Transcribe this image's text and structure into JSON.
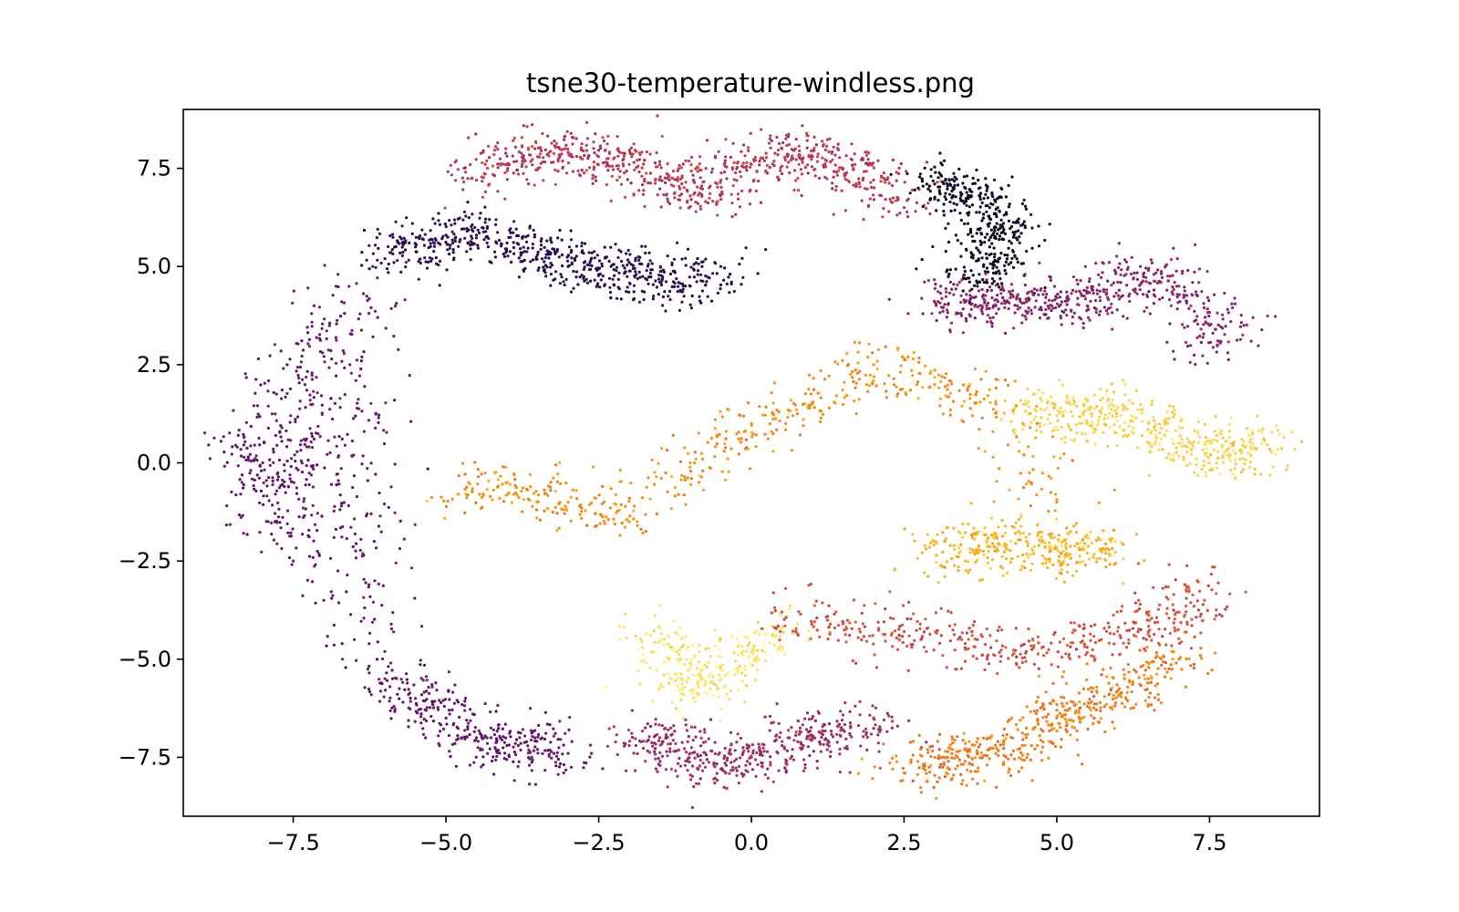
{
  "chart_data": {
    "type": "scatter",
    "title": "tsne30-temperature-windless.png",
    "xlabel": "",
    "ylabel": "",
    "xlim": [
      -9.3,
      9.3
    ],
    "ylim": [
      -9.0,
      9.0
    ],
    "x_ticks": [
      -7.5,
      -5.0,
      -2.5,
      0.0,
      2.5,
      5.0,
      7.5
    ],
    "x_tick_labels": [
      "−7.5",
      "−5.0",
      "−2.5",
      "0.0",
      "2.5",
      "5.0",
      "7.5"
    ],
    "y_ticks": [
      7.5,
      5.0,
      2.5,
      0.0,
      -2.5,
      -5.0,
      -7.5
    ],
    "y_tick_labels": [
      "7.5",
      "5.0",
      "2.5",
      "0.0",
      "−2.5",
      "−5.0",
      "−7.5"
    ],
    "grid": false,
    "legend": "none",
    "colormap": "inferno",
    "color_variable_range": [
      0.05,
      0.95
    ],
    "series": [
      {
        "values_by_region": [
          {
            "region": "outer-left-arc",
            "color_value": 0.35,
            "x": [
              -8.4,
              -8.0,
              -7.8,
              -7.6,
              -7.5,
              -7.2,
              -7.0,
              -6.8,
              -6.5,
              -6.2,
              -6.0,
              -5.5,
              -5.0,
              -4.5,
              -4.0,
              -3.5,
              -3.0
            ],
            "y": [
              0.7,
              0.0,
              -1.5,
              2.5,
              -2.5,
              3.8,
              -3.5,
              4.5,
              -4.5,
              5.0,
              -5.5,
              -6.0,
              -6.5,
              -7.0,
              -7.2,
              -7.3,
              -7.4
            ]
          },
          {
            "region": "upper-left-purple-band",
            "color_value": 0.18,
            "x": [
              -6.0,
              -5.5,
              -5.0,
              -4.5,
              -4.0,
              -3.5,
              -3.0,
              -2.5,
              -2.0,
              -1.5,
              -1.0,
              -0.5
            ],
            "y": [
              5.2,
              5.5,
              5.8,
              5.8,
              5.6,
              5.3,
              5.0,
              4.8,
              5.1,
              4.6,
              4.5,
              5.0
            ]
          },
          {
            "region": "top-arc",
            "color_value": 0.55,
            "x": [
              -4.5,
              -4.0,
              -3.5,
              -3.0,
              -2.5,
              -2.0,
              -1.5,
              -1.0,
              -0.5,
              0.0,
              0.5,
              1.0,
              1.5,
              2.0,
              2.5
            ],
            "y": [
              7.2,
              7.6,
              7.8,
              7.9,
              7.8,
              7.6,
              7.2,
              6.8,
              7.2,
              7.6,
              8.0,
              7.8,
              7.5,
              7.2,
              6.5
            ]
          },
          {
            "region": "dark-hook",
            "color_value": 0.05,
            "x": [
              3.0,
              3.3,
              3.6,
              3.9,
              4.0,
              3.9,
              3.8,
              3.7
            ],
            "y": [
              7.1,
              7.0,
              6.8,
              6.5,
              6.0,
              5.5,
              5.0,
              4.5
            ]
          },
          {
            "region": "right-upper-band",
            "color_value": 0.45,
            "x": [
              3.0,
              3.5,
              4.0,
              4.5,
              5.0,
              5.5,
              6.0,
              6.5,
              7.0,
              7.5,
              7.8
            ],
            "y": [
              4.1,
              4.1,
              4.0,
              4.1,
              4.2,
              4.0,
              4.6,
              4.9,
              4.5,
              3.5,
              2.8
            ]
          },
          {
            "region": "central-orange-mass",
            "color_value": 0.75,
            "x": [
              -4.8,
              -4.0,
              -3.0,
              -2.0,
              -1.0,
              0.0,
              1.0,
              2.0,
              3.0,
              4.0,
              5.0
            ],
            "y": [
              -0.8,
              -0.5,
              -1.0,
              -1.5,
              0.0,
              1.0,
              1.5,
              2.5,
              2.0,
              1.5,
              -1.0
            ]
          },
          {
            "region": "right-yellow-wing",
            "color_value": 0.88,
            "x": [
              4.5,
              5.0,
              5.5,
              6.0,
              6.5,
              7.0,
              7.5,
              8.0,
              8.2
            ],
            "y": [
              1.5,
              1.2,
              1.0,
              1.4,
              1.0,
              0.5,
              0.0,
              0.3,
              0.5
            ]
          },
          {
            "region": "lower-orange-wedge",
            "color_value": 0.82,
            "x": [
              3.0,
              3.5,
              4.0,
              4.5,
              5.0,
              5.5,
              5.8
            ],
            "y": [
              -2.0,
              -2.5,
              -1.8,
              -2.0,
              -2.2,
              -2.3,
              -2.3
            ]
          },
          {
            "region": "lower-yellow-patch",
            "color_value": 0.92,
            "x": [
              -1.5,
              -1.2,
              -1.0,
              -0.5,
              0.0,
              0.5
            ],
            "y": [
              -4.2,
              -5.0,
              -5.8,
              -5.5,
              -4.8,
              -4.2
            ]
          },
          {
            "region": "lower-right-band",
            "color_value": 0.62,
            "x": [
              0.5,
              1.5,
              2.5,
              3.5,
              4.5,
              5.5,
              6.5,
              7.0,
              7.3
            ],
            "y": [
              -3.8,
              -4.1,
              -4.3,
              -4.6,
              -4.8,
              -4.7,
              -4.3,
              -3.8,
              -3.0
            ]
          },
          {
            "region": "bottom-arc",
            "color_value": 0.5,
            "x": [
              -2.0,
              -1.5,
              -1.0,
              -0.5,
              0.0,
              0.5,
              1.0,
              1.5,
              2.0
            ],
            "y": [
              -7.2,
              -7.0,
              -7.4,
              -7.8,
              -7.5,
              -7.2,
              -7.0,
              -6.8,
              -6.5
            ]
          },
          {
            "region": "bottom-right-orange-tail",
            "color_value": 0.72,
            "x": [
              2.5,
              3.0,
              3.5,
              4.0,
              4.5,
              5.0,
              5.5,
              6.0,
              6.5,
              7.0
            ],
            "y": [
              -7.9,
              -7.5,
              -7.6,
              -7.4,
              -7.0,
              -6.5,
              -6.2,
              -5.8,
              -5.5,
              -5.0
            ]
          }
        ]
      }
    ]
  }
}
